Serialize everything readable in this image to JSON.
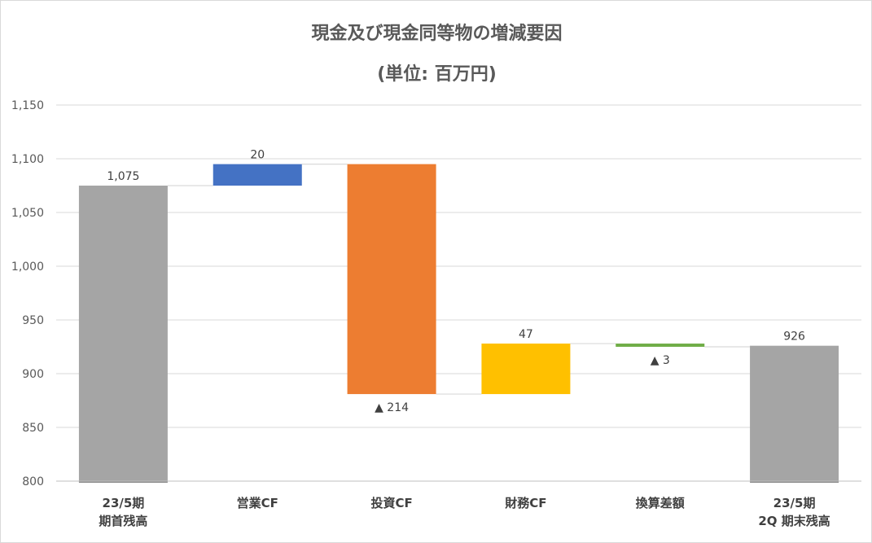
{
  "chart_data": {
    "type": "bar",
    "title": "現金及び現金同等物の増減要因",
    "subtitle": "(単位: 百万円)",
    "categories": [
      [
        "23/5期",
        "期首残高"
      ],
      [
        "営業CF"
      ],
      [
        "投資CF"
      ],
      [
        "財務CF"
      ],
      [
        "換算差額"
      ],
      [
        "23/5期",
        "2Q 期末残高"
      ]
    ],
    "steps": [
      {
        "kind": "total",
        "value": 1075,
        "label": "1,075",
        "color": "#a5a5a5"
      },
      {
        "kind": "delta",
        "value": 20,
        "label": "20",
        "color": "#4472c4"
      },
      {
        "kind": "delta",
        "value": -214,
        "label": "▲ 214",
        "color": "#ed7d31"
      },
      {
        "kind": "delta",
        "value": 47,
        "label": "47",
        "color": "#ffc000"
      },
      {
        "kind": "delta",
        "value": -3,
        "label": "▲ 3",
        "color": "#70ad47"
      },
      {
        "kind": "total",
        "value": 926,
        "label": "926",
        "color": "#a5a5a5"
      }
    ],
    "ylim": [
      800,
      1150
    ],
    "yticks": [
      800,
      850,
      900,
      950,
      1000,
      1050,
      1100,
      1150
    ],
    "ytick_labels": [
      "800",
      "850",
      "900",
      "950",
      "1,000",
      "1,050",
      "1,100",
      "1,150"
    ],
    "grid": true,
    "xlabel": "",
    "ylabel": ""
  }
}
